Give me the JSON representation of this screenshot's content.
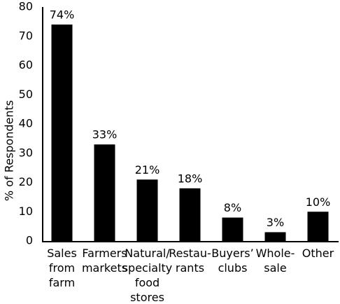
{
  "chart_data": {
    "type": "bar",
    "y_label": "% of Respondents",
    "categories": [
      "Sales\nfrom\nfarm",
      "Farmers\nmarkets",
      "Natural/\nspecialty\nfood\nstores",
      "Restau-\nrants",
      "Buyers’\nclubs",
      "Whole-\nsale",
      "Other"
    ],
    "values": [
      74,
      33,
      21,
      18,
      8,
      3,
      10
    ],
    "value_labels": [
      "74%",
      "33%",
      "21%",
      "18%",
      "8%",
      "3%",
      "10%"
    ],
    "color": "#000000",
    "ylim": [
      0,
      80
    ],
    "yticks": [
      0,
      10,
      20,
      30,
      40,
      50,
      60,
      70,
      80
    ],
    "grid": false
  }
}
